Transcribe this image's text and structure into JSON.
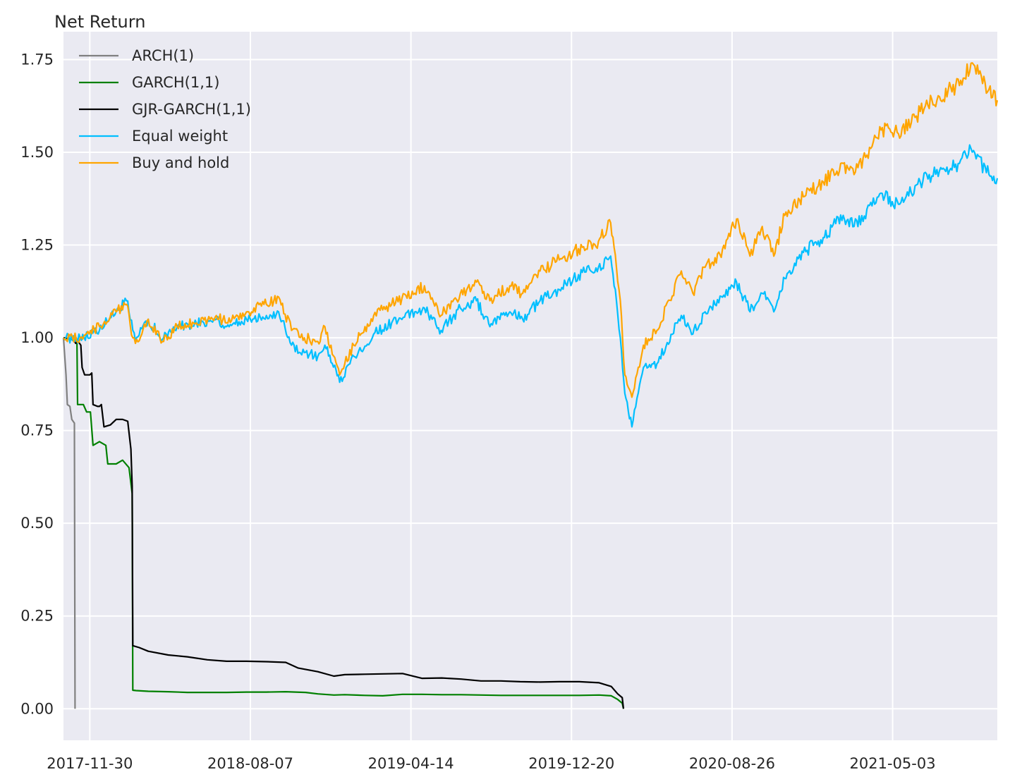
{
  "chart_data": {
    "type": "line",
    "title": "",
    "ylabel": "Net Return",
    "xlabel": "",
    "x_start": "2017-10-20",
    "x_end": "2021-10-13",
    "ylim": [
      -0.085,
      1.825
    ],
    "yticks": [
      0.0,
      0.25,
      0.5,
      0.75,
      1.0,
      1.25,
      1.5,
      1.75
    ],
    "ytick_labels": [
      "0.00",
      "0.25",
      "0.50",
      "0.75",
      "1.00",
      "1.25",
      "1.50",
      "1.75"
    ],
    "xticks": [
      "2017-11-30",
      "2018-08-07",
      "2019-04-14",
      "2019-12-20",
      "2020-08-26",
      "2021-05-03"
    ],
    "grid": true,
    "legend_position": "upper-left",
    "colors": {
      "background": "#eaeaf2",
      "grid": "#ffffff",
      "ARCH(1)": "#808080",
      "GARCH(1,1)": "#008000",
      "GJR-GARCH(1,1)": "#000000",
      "Equal weight": "#00bfff",
      "Buy and hold": "#ffa500"
    },
    "series": [
      {
        "name": "ARCH(1)",
        "points": [
          [
            "2017-10-20",
            1.0
          ],
          [
            "2017-10-24",
            0.9
          ],
          [
            "2017-10-26",
            0.82
          ],
          [
            "2017-10-30",
            0.815
          ],
          [
            "2017-11-02",
            0.78
          ],
          [
            "2017-11-06",
            0.77
          ],
          [
            "2017-11-07",
            0.0
          ]
        ]
      },
      {
        "name": "GARCH(1,1)",
        "points": [
          [
            "2017-10-20",
            1.0
          ],
          [
            "2017-11-06",
            0.995
          ],
          [
            "2017-11-10",
            0.99
          ],
          [
            "2017-11-11",
            0.82
          ],
          [
            "2017-11-20",
            0.82
          ],
          [
            "2017-11-25",
            0.8
          ],
          [
            "2017-11-30",
            0.8
          ],
          [
            "2017-12-01",
            0.8
          ],
          [
            "2017-12-05",
            0.71
          ],
          [
            "2017-12-15",
            0.72
          ],
          [
            "2017-12-25",
            0.71
          ],
          [
            "2017-12-28",
            0.66
          ],
          [
            "2018-01-10",
            0.66
          ],
          [
            "2018-01-20",
            0.67
          ],
          [
            "2018-01-30",
            0.65
          ],
          [
            "2018-02-04",
            0.58
          ],
          [
            "2018-02-05",
            0.05
          ],
          [
            "2018-02-10",
            0.049
          ],
          [
            "2018-03-01",
            0.047
          ],
          [
            "2018-04-01",
            0.046
          ],
          [
            "2018-05-01",
            0.044
          ],
          [
            "2018-06-01",
            0.044
          ],
          [
            "2018-07-01",
            0.044
          ],
          [
            "2018-08-01",
            0.045
          ],
          [
            "2018-09-01",
            0.045
          ],
          [
            "2018-10-01",
            0.046
          ],
          [
            "2018-11-01",
            0.044
          ],
          [
            "2018-11-20",
            0.04
          ],
          [
            "2018-12-15",
            0.037
          ],
          [
            "2019-01-01",
            0.038
          ],
          [
            "2019-02-01",
            0.036
          ],
          [
            "2019-03-01",
            0.035
          ],
          [
            "2019-04-01",
            0.039
          ],
          [
            "2019-05-01",
            0.039
          ],
          [
            "2019-06-01",
            0.038
          ],
          [
            "2019-07-01",
            0.038
          ],
          [
            "2019-08-01",
            0.037
          ],
          [
            "2019-09-01",
            0.036
          ],
          [
            "2019-10-01",
            0.036
          ],
          [
            "2019-11-01",
            0.036
          ],
          [
            "2019-12-01",
            0.036
          ],
          [
            "2020-01-01",
            0.036
          ],
          [
            "2020-02-01",
            0.037
          ],
          [
            "2020-02-20",
            0.035
          ],
          [
            "2020-03-01",
            0.025
          ],
          [
            "2020-03-08",
            0.015
          ],
          [
            "2020-03-10",
            0.0
          ]
        ]
      },
      {
        "name": "GJR-GARCH(1,1)",
        "points": [
          [
            "2017-10-20",
            1.0
          ],
          [
            "2017-11-05",
            0.995
          ],
          [
            "2017-11-08",
            0.985
          ],
          [
            "2017-11-12",
            0.99
          ],
          [
            "2017-11-16",
            0.98
          ],
          [
            "2017-11-18",
            0.92
          ],
          [
            "2017-11-22",
            0.9
          ],
          [
            "2017-11-30",
            0.9
          ],
          [
            "2017-12-03",
            0.905
          ],
          [
            "2017-12-05",
            0.82
          ],
          [
            "2017-12-12",
            0.815
          ],
          [
            "2017-12-15",
            0.815
          ],
          [
            "2017-12-18",
            0.82
          ],
          [
            "2017-12-22",
            0.76
          ],
          [
            "2018-01-01",
            0.765
          ],
          [
            "2018-01-10",
            0.78
          ],
          [
            "2018-01-20",
            0.78
          ],
          [
            "2018-01-28",
            0.775
          ],
          [
            "2018-02-02",
            0.7
          ],
          [
            "2018-02-04",
            0.6
          ],
          [
            "2018-02-05",
            0.17
          ],
          [
            "2018-02-15",
            0.165
          ],
          [
            "2018-03-01",
            0.155
          ],
          [
            "2018-04-01",
            0.145
          ],
          [
            "2018-05-01",
            0.14
          ],
          [
            "2018-06-01",
            0.132
          ],
          [
            "2018-07-01",
            0.128
          ],
          [
            "2018-08-01",
            0.128
          ],
          [
            "2018-09-01",
            0.127
          ],
          [
            "2018-10-01",
            0.125
          ],
          [
            "2018-10-20",
            0.11
          ],
          [
            "2018-11-20",
            0.1
          ],
          [
            "2018-12-15",
            0.088
          ],
          [
            "2019-01-01",
            0.092
          ],
          [
            "2019-02-01",
            0.093
          ],
          [
            "2019-03-01",
            0.094
          ],
          [
            "2019-04-01",
            0.095
          ],
          [
            "2019-05-01",
            0.082
          ],
          [
            "2019-06-01",
            0.083
          ],
          [
            "2019-07-01",
            0.08
          ],
          [
            "2019-08-01",
            0.075
          ],
          [
            "2019-09-01",
            0.075
          ],
          [
            "2019-10-01",
            0.073
          ],
          [
            "2019-11-01",
            0.072
          ],
          [
            "2019-12-01",
            0.073
          ],
          [
            "2020-01-01",
            0.073
          ],
          [
            "2020-02-01",
            0.07
          ],
          [
            "2020-02-20",
            0.06
          ],
          [
            "2020-03-01",
            0.04
          ],
          [
            "2020-03-08",
            0.03
          ],
          [
            "2020-03-10",
            0.0
          ]
        ]
      },
      {
        "name": "Equal weight",
        "points": [
          [
            "2017-10-20",
            1.0
          ],
          [
            "2017-11-15",
            1.0
          ],
          [
            "2017-12-15",
            1.02
          ],
          [
            "2018-01-10",
            1.07
          ],
          [
            "2018-01-26",
            1.1
          ],
          [
            "2018-02-05",
            1.02
          ],
          [
            "2018-02-09",
            0.99
          ],
          [
            "2018-03-01",
            1.05
          ],
          [
            "2018-03-23",
            0.995
          ],
          [
            "2018-04-15",
            1.03
          ],
          [
            "2018-05-15",
            1.04
          ],
          [
            "2018-06-15",
            1.05
          ],
          [
            "2018-07-01",
            1.03
          ],
          [
            "2018-08-01",
            1.05
          ],
          [
            "2018-09-01",
            1.06
          ],
          [
            "2018-09-20",
            1.07
          ],
          [
            "2018-10-10",
            0.98
          ],
          [
            "2018-10-30",
            0.96
          ],
          [
            "2018-11-20",
            0.95
          ],
          [
            "2018-12-01",
            0.98
          ],
          [
            "2018-12-24",
            0.88
          ],
          [
            "2019-01-15",
            0.95
          ],
          [
            "2019-02-15",
            1.01
          ],
          [
            "2019-03-15",
            1.04
          ],
          [
            "2019-04-20",
            1.07
          ],
          [
            "2019-05-05",
            1.08
          ],
          [
            "2019-05-31",
            1.02
          ],
          [
            "2019-06-30",
            1.08
          ],
          [
            "2019-07-25",
            1.1
          ],
          [
            "2019-08-15",
            1.03
          ],
          [
            "2019-09-15",
            1.07
          ],
          [
            "2019-10-05",
            1.05
          ],
          [
            "2019-11-01",
            1.1
          ],
          [
            "2019-12-01",
            1.13
          ],
          [
            "2019-12-31",
            1.17
          ],
          [
            "2020-01-31",
            1.19
          ],
          [
            "2020-02-19",
            1.22
          ],
          [
            "2020-02-28",
            1.1
          ],
          [
            "2020-03-05",
            1.0
          ],
          [
            "2020-03-12",
            0.85
          ],
          [
            "2020-03-23",
            0.76
          ],
          [
            "2020-04-10",
            0.92
          ],
          [
            "2020-05-01",
            0.93
          ],
          [
            "2020-06-08",
            1.06
          ],
          [
            "2020-06-26",
            1.01
          ],
          [
            "2020-07-15",
            1.07
          ],
          [
            "2020-08-15",
            1.11
          ],
          [
            "2020-09-02",
            1.15
          ],
          [
            "2020-09-23",
            1.07
          ],
          [
            "2020-10-12",
            1.12
          ],
          [
            "2020-10-30",
            1.07
          ],
          [
            "2020-11-16",
            1.16
          ],
          [
            "2020-12-15",
            1.23
          ],
          [
            "2021-01-15",
            1.27
          ],
          [
            "2021-02-15",
            1.33
          ],
          [
            "2021-03-04",
            1.3
          ],
          [
            "2021-04-15",
            1.39
          ],
          [
            "2021-05-12",
            1.36
          ],
          [
            "2021-06-15",
            1.42
          ],
          [
            "2021-07-15",
            1.45
          ],
          [
            "2021-08-15",
            1.47
          ],
          [
            "2021-09-02",
            1.51
          ],
          [
            "2021-09-30",
            1.44
          ],
          [
            "2021-10-13",
            1.43
          ]
        ]
      },
      {
        "name": "Buy and hold",
        "points": [
          [
            "2017-10-20",
            1.0
          ],
          [
            "2017-11-15",
            1.0
          ],
          [
            "2017-12-15",
            1.03
          ],
          [
            "2018-01-10",
            1.07
          ],
          [
            "2018-01-26",
            1.09
          ],
          [
            "2018-02-05",
            1.0
          ],
          [
            "2018-02-09",
            0.985
          ],
          [
            "2018-03-01",
            1.05
          ],
          [
            "2018-03-23",
            0.99
          ],
          [
            "2018-04-15",
            1.03
          ],
          [
            "2018-05-15",
            1.04
          ],
          [
            "2018-06-15",
            1.06
          ],
          [
            "2018-07-01",
            1.04
          ],
          [
            "2018-08-01",
            1.07
          ],
          [
            "2018-09-01",
            1.09
          ],
          [
            "2018-09-20",
            1.11
          ],
          [
            "2018-10-10",
            1.02
          ],
          [
            "2018-10-30",
            1.0
          ],
          [
            "2018-11-20",
            0.99
          ],
          [
            "2018-12-01",
            1.03
          ],
          [
            "2018-12-24",
            0.9
          ],
          [
            "2019-01-15",
            0.98
          ],
          [
            "2019-02-15",
            1.06
          ],
          [
            "2019-03-15",
            1.09
          ],
          [
            "2019-04-20",
            1.12
          ],
          [
            "2019-05-05",
            1.14
          ],
          [
            "2019-05-31",
            1.06
          ],
          [
            "2019-06-30",
            1.12
          ],
          [
            "2019-07-25",
            1.15
          ],
          [
            "2019-08-15",
            1.1
          ],
          [
            "2019-09-15",
            1.14
          ],
          [
            "2019-10-05",
            1.12
          ],
          [
            "2019-11-01",
            1.18
          ],
          [
            "2019-12-01",
            1.21
          ],
          [
            "2019-12-31",
            1.24
          ],
          [
            "2020-01-31",
            1.26
          ],
          [
            "2020-02-19",
            1.31
          ],
          [
            "2020-02-28",
            1.19
          ],
          [
            "2020-03-05",
            1.1
          ],
          [
            "2020-03-12",
            0.9
          ],
          [
            "2020-03-23",
            0.84
          ],
          [
            "2020-04-10",
            0.98
          ],
          [
            "2020-05-01",
            1.02
          ],
          [
            "2020-06-08",
            1.18
          ],
          [
            "2020-06-26",
            1.12
          ],
          [
            "2020-07-15",
            1.19
          ],
          [
            "2020-08-15",
            1.24
          ],
          [
            "2020-09-02",
            1.32
          ],
          [
            "2020-09-23",
            1.22
          ],
          [
            "2020-10-12",
            1.3
          ],
          [
            "2020-10-30",
            1.22
          ],
          [
            "2020-11-16",
            1.33
          ],
          [
            "2020-12-15",
            1.38
          ],
          [
            "2021-01-15",
            1.42
          ],
          [
            "2021-02-15",
            1.47
          ],
          [
            "2021-03-04",
            1.44
          ],
          [
            "2021-04-15",
            1.56
          ],
          [
            "2021-05-12",
            1.55
          ],
          [
            "2021-06-15",
            1.61
          ],
          [
            "2021-07-15",
            1.65
          ],
          [
            "2021-08-15",
            1.68
          ],
          [
            "2021-09-02",
            1.74
          ],
          [
            "2021-09-30",
            1.67
          ],
          [
            "2021-10-13",
            1.64
          ]
        ]
      }
    ]
  }
}
